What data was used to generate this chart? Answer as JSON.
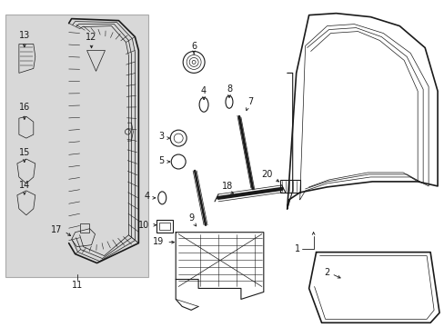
{
  "bg_color": "#ffffff",
  "line_color": "#1a1a1a",
  "gray_box": "#d8d8d8",
  "figsize": [
    4.89,
    3.6
  ],
  "dpi": 100
}
